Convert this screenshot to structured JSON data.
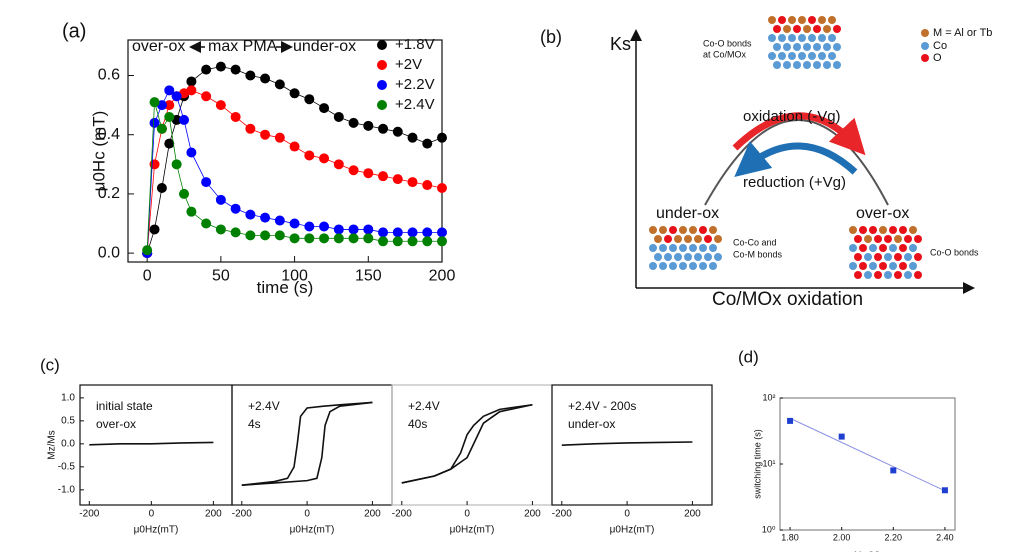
{
  "panel_labels": [
    "(a)",
    "(b)",
    "(c)",
    "(d)"
  ],
  "chart_data": [
    {
      "type": "scatter",
      "xlabel": "time (s)",
      "ylabel": "μ0Hc (mT)",
      "annotations": [
        "over-ox",
        "max PMA",
        "under-ox"
      ],
      "x": [
        0,
        5,
        10,
        15,
        20,
        25,
        30,
        40,
        50,
        60,
        70,
        80,
        90,
        100,
        110,
        120,
        130,
        140,
        150,
        160,
        170,
        180,
        190,
        200
      ],
      "series": [
        {
          "name": "+1.8V",
          "color": "#000000",
          "values": [
            0,
            0.08,
            0.22,
            0.37,
            0.45,
            0.53,
            0.58,
            0.62,
            0.63,
            0.62,
            0.6,
            0.59,
            0.57,
            0.54,
            0.52,
            0.49,
            0.46,
            0.44,
            0.43,
            0.42,
            0.41,
            0.39,
            0.37,
            0.39
          ]
        },
        {
          "name": "+2V",
          "color": "#ff0000",
          "values": [
            0,
            0.3,
            0.42,
            0.5,
            0.53,
            0.54,
            0.55,
            0.53,
            0.5,
            0.46,
            0.42,
            0.4,
            0.39,
            0.36,
            0.33,
            0.32,
            0.3,
            0.28,
            0.27,
            0.26,
            0.25,
            0.24,
            0.23,
            0.22
          ]
        },
        {
          "name": "+2.2V",
          "color": "#0000ff",
          "values": [
            0,
            0.44,
            0.5,
            0.55,
            0.53,
            0.45,
            0.34,
            0.24,
            0.18,
            0.15,
            0.13,
            0.12,
            0.11,
            0.1,
            0.09,
            0.09,
            0.08,
            0.08,
            0.08,
            0.07,
            0.07,
            0.07,
            0.07,
            0.07
          ]
        },
        {
          "name": "+2.4V",
          "color": "#008000",
          "values": [
            0.01,
            0.51,
            0.42,
            0.46,
            0.3,
            0.2,
            0.14,
            0.1,
            0.08,
            0.07,
            0.06,
            0.06,
            0.06,
            0.05,
            0.05,
            0.05,
            0.05,
            0.05,
            0.05,
            0.04,
            0.04,
            0.04,
            0.04,
            0.04
          ]
        }
      ],
      "xlim": [
        -13,
        200
      ],
      "xticks": [
        0,
        50,
        100,
        150,
        200
      ],
      "ylim": [
        -0.03,
        0.72
      ],
      "yticks": [
        {
          "value": 0,
          "label": "0.0"
        },
        {
          "value": 0.2,
          "label": "0.2"
        },
        {
          "value": 0.4,
          "label": "0.4"
        },
        {
          "value": 0.6,
          "label": "0.6"
        }
      ],
      "legend": "upper right"
    },
    {
      "type": "line",
      "ylabel": "Mz/Ms",
      "xlabel": "μ0Hz(mT)",
      "annotations": [
        "initial state",
        "over-ox"
      ],
      "series": [
        {
          "color": "#111111",
          "x": [
            -200,
            -100,
            0,
            100,
            200
          ],
          "values": [
            -0.02,
            0,
            0,
            0.02,
            0.03
          ]
        }
      ],
      "xlim": [
        -230,
        260
      ],
      "xticks": [
        -200,
        0,
        200
      ],
      "ylim": [
        -1.33,
        1.28
      ],
      "yticks": [
        {
          "value": -1,
          "label": "-1.0"
        },
        {
          "value": -0.5,
          "label": "-0.5"
        },
        {
          "value": 0,
          "label": "0.0"
        },
        {
          "value": 0.5,
          "label": "0.5"
        },
        {
          "value": 1,
          "label": "1.0"
        }
      ]
    },
    {
      "type": "line",
      "xlabel": "μ0Hz(mT)",
      "annotations": [
        "+2.4V",
        "4s"
      ],
      "series": [
        {
          "color": "#111111",
          "x": [
            200,
            100,
            50,
            0,
            -20,
            -30,
            -40,
            -60,
            -100,
            -200
          ],
          "values": [
            0.9,
            0.85,
            0.82,
            0.78,
            0.6,
            0,
            -0.5,
            -0.75,
            -0.82,
            -0.9
          ]
        },
        {
          "color": "#111111",
          "x": [
            -200,
            -100,
            0,
            30,
            45,
            55,
            70,
            100,
            200
          ],
          "values": [
            -0.9,
            -0.85,
            -0.8,
            -0.75,
            -0.3,
            0.4,
            0.7,
            0.82,
            0.9
          ]
        }
      ],
      "xlim": [
        -230,
        260
      ],
      "xticks": [
        -200,
        0,
        200
      ],
      "ylim": [
        -1.33,
        1.28
      ]
    },
    {
      "type": "line",
      "xlabel": "μ0Hz(mT)",
      "annotations": [
        "+2.4V",
        "40s"
      ],
      "series": [
        {
          "color": "#111111",
          "x": [
            200,
            100,
            50,
            20,
            0,
            -20,
            -50,
            -100,
            -200
          ],
          "values": [
            0.85,
            0.75,
            0.6,
            0.4,
            0.2,
            -0.2,
            -0.55,
            -0.7,
            -0.85
          ]
        },
        {
          "color": "#111111",
          "x": [
            -200,
            -100,
            -50,
            0,
            20,
            50,
            100,
            200
          ],
          "values": [
            -0.85,
            -0.7,
            -0.55,
            -0.3,
            0,
            0.45,
            0.7,
            0.85
          ]
        }
      ],
      "xlim": [
        -230,
        260
      ],
      "xticks": [
        -200,
        0,
        200
      ],
      "ylim": [
        -1.33,
        1.28
      ]
    },
    {
      "type": "line",
      "xlabel": "μ0Hz(mT)",
      "annotations": [
        "+2.4V  - 200s",
        "under-ox"
      ],
      "series": [
        {
          "color": "#111111",
          "x": [
            -200,
            -100,
            0,
            100,
            200
          ],
          "values": [
            -0.03,
            0,
            0.02,
            0.03,
            0.04
          ]
        }
      ],
      "xlim": [
        -230,
        260
      ],
      "xticks": [
        -200,
        0,
        200
      ],
      "ylim": [
        -1.33,
        1.28
      ]
    },
    {
      "type": "scatter_fit",
      "xlabel": "Vg (V)",
      "ylabel": "switching time (s)",
      "log_y": true,
      "x": [
        1.8,
        2.0,
        2.2,
        2.4
      ],
      "series": [
        {
          "color": "#1f3fd0",
          "values": [
            45,
            26,
            8,
            4
          ]
        }
      ],
      "fit_color": "#8a90e0",
      "xlim": [
        1.761,
        2.439
      ],
      "xticks": [
        {
          "value": 1.8,
          "label": "1.80"
        },
        {
          "value": 2.0,
          "label": "2.00"
        },
        {
          "value": 2.2,
          "label": "2.20"
        },
        {
          "value": 2.4,
          "label": "2.40"
        }
      ],
      "ylim": [
        1,
        100
      ],
      "yticks": [
        {
          "value": 1,
          "label": "10⁰"
        },
        {
          "value": 10,
          "label": "10¹"
        },
        {
          "value": 100,
          "label": "10²"
        }
      ]
    }
  ],
  "diagram": {
    "y_axis_label": "Ks",
    "x_axis_label": "Co/MOx oxidation",
    "top_note": [
      "Co-O bonds",
      "at Co/MOx"
    ],
    "key": [
      "M = Al or Tb",
      "Co",
      "O"
    ],
    "oxidation": "oxidation (-Vg)",
    "reduction": "reduction (+Vg)",
    "left_state": "under-ox",
    "left_note": [
      "Co-Co and",
      "Co-M bonds"
    ],
    "right_state": "over-ox",
    "right_note": "Co-O bonds"
  }
}
